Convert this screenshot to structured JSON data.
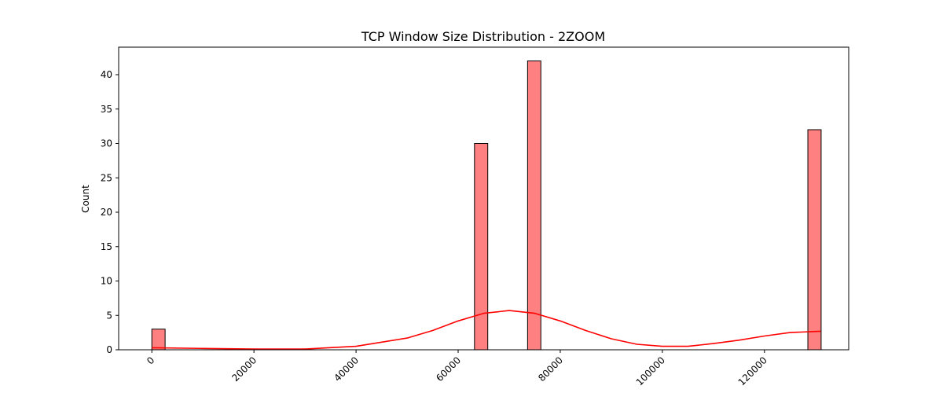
{
  "chart_data": {
    "type": "bar",
    "title": "TCP Window Size Distribution - 2ZOOM",
    "xlabel": "",
    "ylabel": "Count",
    "xlim": [
      -6500,
      136500
    ],
    "ylim": [
      0,
      44
    ],
    "x_ticks": [
      0,
      20000,
      40000,
      60000,
      80000,
      100000,
      120000
    ],
    "y_ticks": [
      0,
      5,
      10,
      15,
      20,
      25,
      30,
      35,
      40
    ],
    "grid": false,
    "bar_fill": "#ff8080",
    "bar_edge": "#000000",
    "kde_color": "#ff0000",
    "bins": [
      {
        "x0": 0,
        "x1": 2600,
        "count": 3
      },
      {
        "x0": 63200,
        "x1": 65800,
        "count": 30
      },
      {
        "x0": 73600,
        "x1": 76200,
        "count": 42
      },
      {
        "x0": 128500,
        "x1": 131100,
        "count": 32
      }
    ],
    "kde_curve": {
      "x": [
        0,
        10000,
        20000,
        30000,
        40000,
        50000,
        55000,
        60000,
        65000,
        70000,
        75000,
        80000,
        85000,
        90000,
        95000,
        100000,
        105000,
        110000,
        115000,
        120000,
        125000,
        131000
      ],
      "y": [
        0.3,
        0.2,
        0.1,
        0.1,
        0.5,
        1.7,
        2.8,
        4.2,
        5.3,
        5.7,
        5.3,
        4.2,
        2.8,
        1.6,
        0.8,
        0.5,
        0.5,
        0.9,
        1.4,
        2.0,
        2.5,
        2.7
      ]
    }
  }
}
